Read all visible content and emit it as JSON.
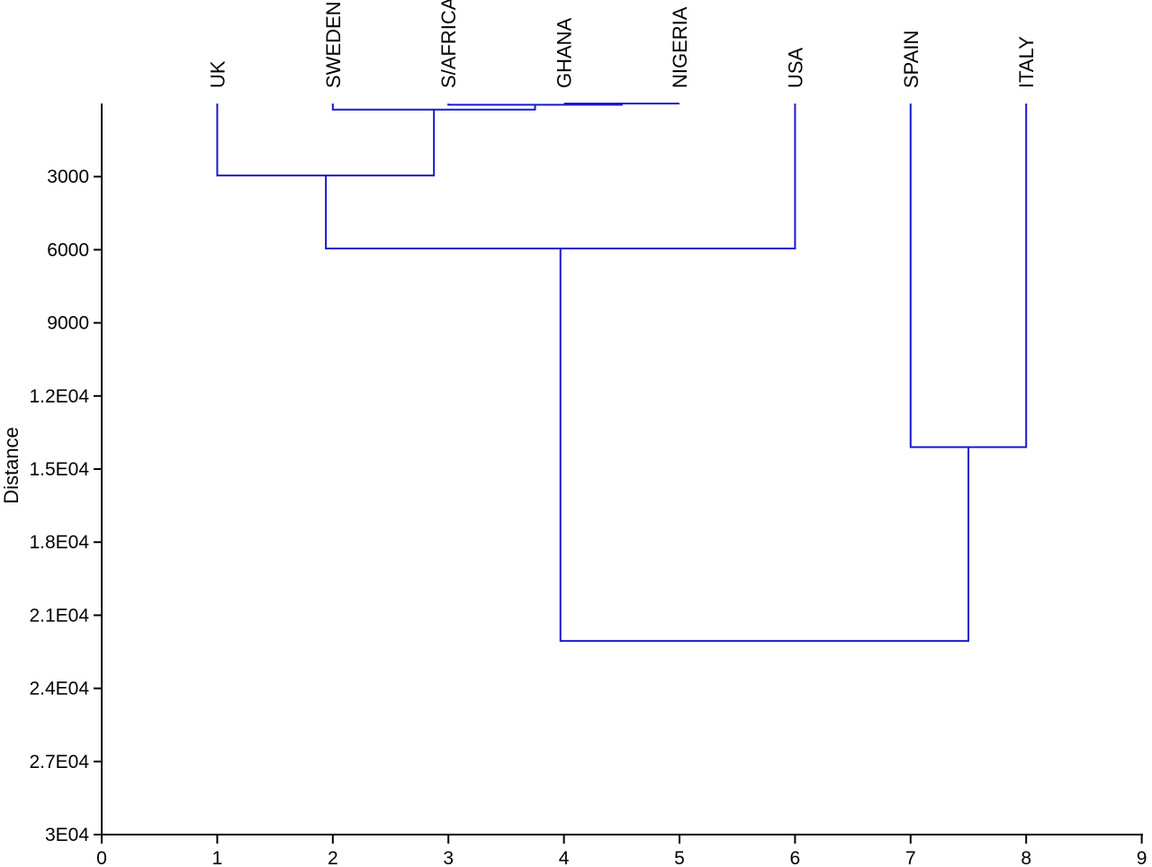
{
  "chart_data": {
    "type": "dendrogram",
    "ylabel": "Distance",
    "xlim": [
      0,
      9
    ],
    "ylim": [
      0,
      30000
    ],
    "y_inverted": true,
    "x_ticks": [
      "0",
      "1",
      "2",
      "3",
      "4",
      "5",
      "6",
      "7",
      "8",
      "9"
    ],
    "y_ticks": [
      {
        "value": 3000,
        "label": "3000"
      },
      {
        "value": 6000,
        "label": "6000"
      },
      {
        "value": 9000,
        "label": "9000"
      },
      {
        "value": 12000,
        "label": "1.2E04"
      },
      {
        "value": 15000,
        "label": "1.5E04"
      },
      {
        "value": 18000,
        "label": "1.8E04"
      },
      {
        "value": 21000,
        "label": "2.1E04"
      },
      {
        "value": 24000,
        "label": "2.4E04"
      },
      {
        "value": 27000,
        "label": "2.7E04"
      },
      {
        "value": 30000,
        "label": "3E04"
      }
    ],
    "leaves": [
      {
        "label": "UK",
        "x": 1
      },
      {
        "label": "SWEDEN",
        "x": 2
      },
      {
        "label": "S/AFRICA",
        "x": 3
      },
      {
        "label": "GHANA",
        "x": 4
      },
      {
        "label": "NIGERIA",
        "x": 5
      },
      {
        "label": "USA",
        "x": 6
      },
      {
        "label": "SPAIN",
        "x": 7
      },
      {
        "label": "ITALY",
        "x": 8
      }
    ],
    "merges": [
      {
        "left_x": 4,
        "left_h": 0,
        "right_x": 5,
        "right_h": 0,
        "height": 0
      },
      {
        "left_x": 3,
        "left_h": 0,
        "right_x": 4.5,
        "right_h": 0,
        "height": 50
      },
      {
        "left_x": 2,
        "left_h": 0,
        "right_x": 3.75,
        "right_h": 50,
        "height": 250
      },
      {
        "left_x": 1,
        "left_h": 0,
        "right_x": 2.875,
        "right_h": 250,
        "height": 2950
      },
      {
        "left_x": 1.94,
        "left_h": 2950,
        "right_x": 6,
        "right_h": 0,
        "height": 5950
      },
      {
        "left_x": 7,
        "left_h": 0,
        "right_x": 8,
        "right_h": 0,
        "height": 14100
      },
      {
        "left_x": 3.97,
        "left_h": 5950,
        "right_x": 7.5,
        "right_h": 14100,
        "height": 22050
      }
    ],
    "line_color": "#1a1acc"
  }
}
